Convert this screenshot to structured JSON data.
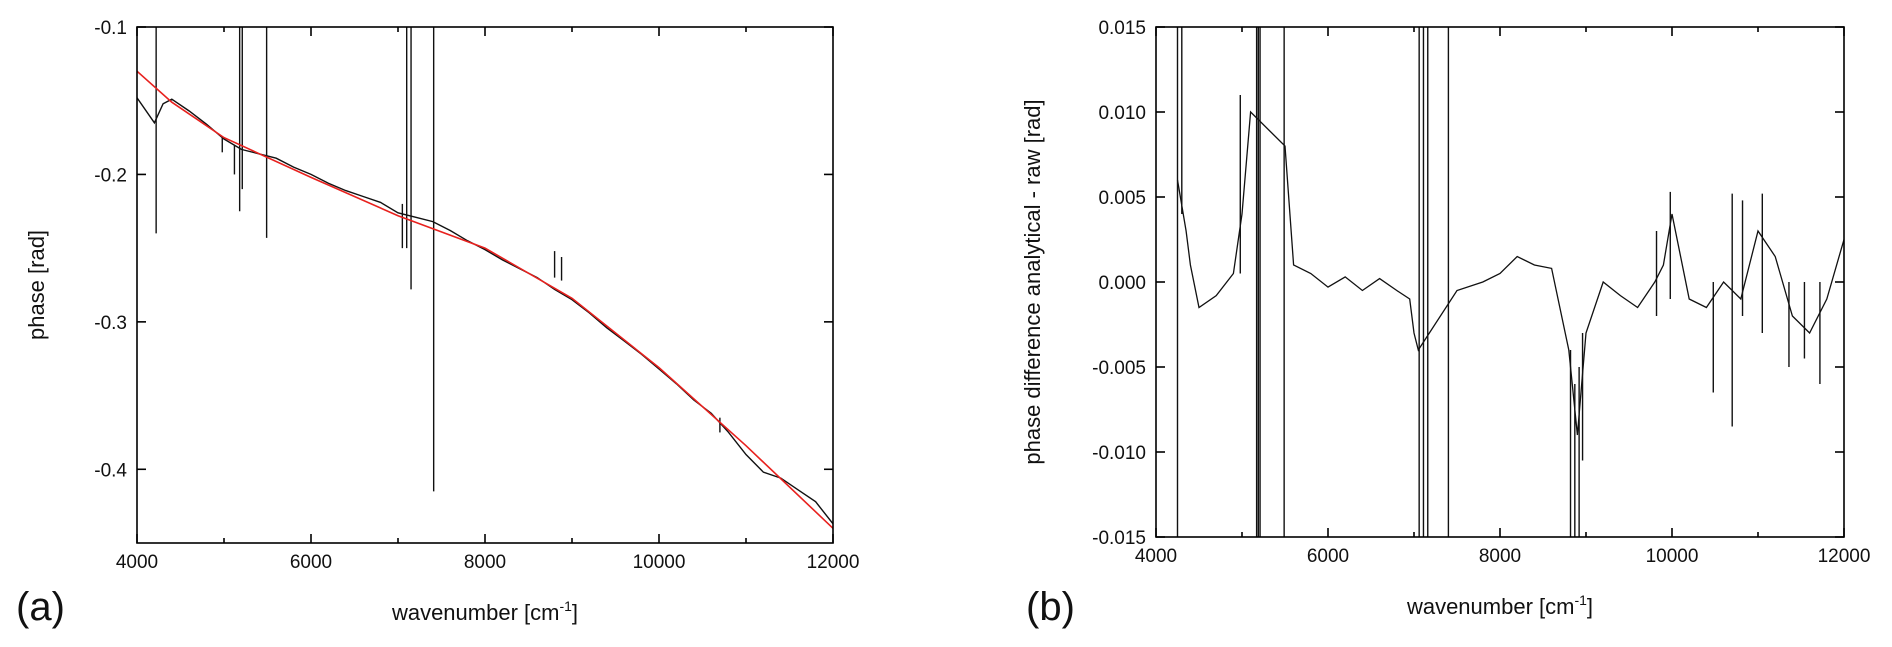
{
  "chart_data": [
    {
      "panel_label": "(a)",
      "type": "line",
      "xlabel": "wavenumber [cm",
      "xlabel_sup": "-1",
      "xlabel_close": "]",
      "ylabel": "phase [rad]",
      "xlim": [
        4000,
        12000
      ],
      "ylim": [
        -0.45,
        -0.1
      ],
      "x_ticks": [
        4000,
        6000,
        8000,
        10000,
        12000
      ],
      "x_tick_labels": [
        "4000",
        "6000",
        "8000",
        "10000",
        "12000"
      ],
      "y_ticks": [
        -0.1,
        -0.2,
        -0.3,
        -0.4
      ],
      "y_tick_labels": [
        "-0.1",
        "-0.2",
        "-0.3",
        "-0.4"
      ],
      "grid": false,
      "colors": {
        "measured": "#111111",
        "fit": "#e8211e"
      },
      "series": [
        {
          "key": "measured",
          "x": [
            4000,
            4200,
            4300,
            4400,
            4600,
            4800,
            5000,
            5200,
            5400,
            5600,
            5800,
            6000,
            6200,
            6400,
            6600,
            6800,
            7000,
            7200,
            7400,
            7600,
            7800,
            8000,
            8200,
            8400,
            8600,
            8800,
            9000,
            9200,
            9400,
            9600,
            9800,
            10000,
            10200,
            10400,
            10600,
            10800,
            11000,
            11200,
            11400,
            11600,
            11800,
            12000
          ],
          "y": [
            -0.148,
            -0.165,
            -0.152,
            -0.149,
            -0.157,
            -0.166,
            -0.176,
            -0.183,
            -0.186,
            -0.189,
            -0.195,
            -0.2,
            -0.206,
            -0.211,
            -0.215,
            -0.219,
            -0.226,
            -0.229,
            -0.232,
            -0.238,
            -0.245,
            -0.251,
            -0.258,
            -0.264,
            -0.27,
            -0.278,
            -0.285,
            -0.294,
            -0.304,
            -0.313,
            -0.322,
            -0.332,
            -0.342,
            -0.353,
            -0.362,
            -0.375,
            -0.39,
            -0.402,
            -0.406,
            -0.414,
            -0.422,
            -0.437
          ],
          "spikes": [
            {
              "x": 4220,
              "low": -0.24,
              "high": -0.1
            },
            {
              "x": 4980,
              "low": -0.185,
              "high": -0.175
            },
            {
              "x": 5120,
              "low": -0.2,
              "high": -0.18
            },
            {
              "x": 5180,
              "low": -0.225,
              "high": -0.1
            },
            {
              "x": 5210,
              "low": -0.21,
              "high": -0.1
            },
            {
              "x": 5490,
              "low": -0.243,
              "high": -0.1
            },
            {
              "x": 7050,
              "low": -0.25,
              "high": -0.22
            },
            {
              "x": 7100,
              "low": -0.25,
              "high": -0.1
            },
            {
              "x": 7150,
              "low": -0.278,
              "high": -0.1
            },
            {
              "x": 7410,
              "low": -0.415,
              "high": -0.1
            },
            {
              "x": 8800,
              "low": -0.27,
              "high": -0.252
            },
            {
              "x": 8880,
              "low": -0.272,
              "high": -0.256
            },
            {
              "x": 10700,
              "low": -0.375,
              "high": -0.365
            }
          ]
        },
        {
          "key": "fit",
          "x": [
            4000,
            4400,
            5000,
            6000,
            7000,
            8000,
            9000,
            10000,
            11000,
            12000
          ],
          "y": [
            -0.13,
            -0.151,
            -0.175,
            -0.202,
            -0.228,
            -0.25,
            -0.284,
            -0.331,
            -0.384,
            -0.44
          ]
        }
      ]
    },
    {
      "panel_label": "(b)",
      "type": "line",
      "xlabel": "wavenumber [cm",
      "xlabel_sup": "-1",
      "xlabel_close": "]",
      "ylabel": "phase difference analytical - raw [rad]",
      "xlim": [
        4000,
        12000
      ],
      "ylim": [
        -0.015,
        0.015
      ],
      "x_ticks": [
        4000,
        6000,
        8000,
        10000,
        12000
      ],
      "x_tick_labels": [
        "4000",
        "6000",
        "8000",
        "10000",
        "12000"
      ],
      "y_ticks": [
        0.015,
        0.01,
        0.005,
        0.0,
        -0.005,
        -0.01,
        -0.015
      ],
      "y_tick_labels": [
        "0.015",
        "0.010",
        "0.005",
        "0.000",
        "-0.005",
        "-0.010",
        "-0.015"
      ],
      "grid": false,
      "colors": {
        "difference": "#111111"
      },
      "series": [
        {
          "key": "difference",
          "x": [
            4250,
            4350,
            4400,
            4500,
            4700,
            4900,
            5000,
            5100,
            5500,
            5600,
            5800,
            6000,
            6200,
            6400,
            6600,
            6800,
            6950,
            7000,
            7050,
            7500,
            7800,
            8000,
            8200,
            8400,
            8600,
            8800,
            8900,
            9000,
            9200,
            9400,
            9600,
            9800,
            9900,
            10000,
            10200,
            10400,
            10600,
            10800,
            11000,
            11200,
            11400,
            11600,
            11800,
            12000
          ],
          "y": [
            0.006,
            0.003,
            0.001,
            -0.0015,
            -0.0008,
            0.0005,
            0.004,
            0.01,
            0.008,
            0.001,
            0.0005,
            -0.0003,
            0.0003,
            -0.0005,
            0.0002,
            -0.0005,
            -0.001,
            -0.003,
            -0.004,
            -0.0005,
            0.0,
            0.0005,
            0.0015,
            0.001,
            0.0008,
            -0.004,
            -0.009,
            -0.003,
            0.0,
            -0.0008,
            -0.0015,
            0.0,
            0.001,
            0.004,
            -0.001,
            -0.0015,
            0.0,
            -0.001,
            0.003,
            0.0015,
            -0.002,
            -0.003,
            -0.001,
            0.0025
          ],
          "spikes": [
            {
              "x": 4250,
              "low": -0.015,
              "high": 0.015
            },
            {
              "x": 4300,
              "low": 0.004,
              "high": 0.015
            },
            {
              "x": 4980,
              "low": 0.0005,
              "high": 0.011
            },
            {
              "x": 5170,
              "low": -0.015,
              "high": 0.015
            },
            {
              "x": 5190,
              "low": -0.015,
              "high": 0.015
            },
            {
              "x": 5210,
              "low": -0.015,
              "high": 0.015
            },
            {
              "x": 5490,
              "low": -0.015,
              "high": 0.015
            },
            {
              "x": 7060,
              "low": -0.015,
              "high": 0.015
            },
            {
              "x": 7110,
              "low": -0.015,
              "high": 0.015
            },
            {
              "x": 7160,
              "low": -0.015,
              "high": 0.015
            },
            {
              "x": 7400,
              "low": -0.015,
              "high": 0.015
            },
            {
              "x": 8820,
              "low": -0.015,
              "high": -0.004
            },
            {
              "x": 8870,
              "low": -0.015,
              "high": -0.006
            },
            {
              "x": 8920,
              "low": -0.015,
              "high": -0.005
            },
            {
              "x": 8960,
              "low": -0.0105,
              "high": -0.003
            },
            {
              "x": 9820,
              "low": -0.002,
              "high": 0.003
            },
            {
              "x": 9980,
              "low": -0.001,
              "high": 0.0053
            },
            {
              "x": 10480,
              "low": -0.0065,
              "high": 0.0
            },
            {
              "x": 10700,
              "low": -0.0085,
              "high": 0.0052
            },
            {
              "x": 10820,
              "low": -0.002,
              "high": 0.0048
            },
            {
              "x": 11050,
              "low": -0.003,
              "high": 0.0052
            },
            {
              "x": 11360,
              "low": -0.005,
              "high": 0.0
            },
            {
              "x": 11540,
              "low": -0.0045,
              "high": 0.0
            },
            {
              "x": 11720,
              "low": -0.006,
              "high": 0.0
            }
          ]
        }
      ]
    }
  ]
}
